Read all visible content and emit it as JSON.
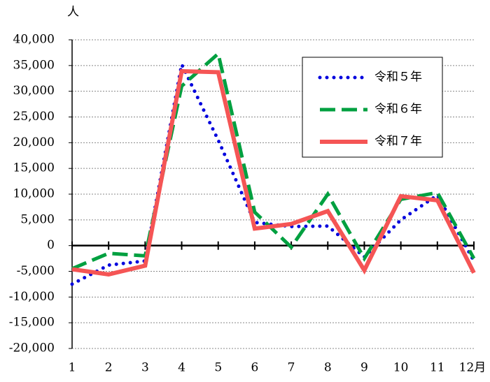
{
  "chart_data": {
    "type": "line",
    "y_unit": "人",
    "categories": [
      "1",
      "2",
      "3",
      "4",
      "5",
      "6",
      "7",
      "8",
      "9",
      "10",
      "11",
      "12月"
    ],
    "series": [
      {
        "name": "令和５年",
        "color": "#0000dd",
        "style": "dotted",
        "values": [
          -7500,
          -3800,
          -3000,
          35200,
          20500,
          4500,
          3700,
          3800,
          -2200,
          5000,
          9800,
          -3000
        ]
      },
      {
        "name": "令和６年",
        "color": "#00a040",
        "style": "dashed",
        "values": [
          -4500,
          -1500,
          -2000,
          31000,
          37300,
          6500,
          -300,
          10000,
          -2500,
          9000,
          10300,
          -2500
        ]
      },
      {
        "name": "令和７年",
        "color": "#f55555",
        "style": "solid",
        "values": [
          -4600,
          -5600,
          -3900,
          33900,
          33700,
          3300,
          4200,
          6700,
          -4800,
          9600,
          8800,
          -5300
        ]
      }
    ],
    "ylim": [
      -20000,
      40000
    ],
    "yticks": [
      {
        "value": 40000,
        "label": "40,000"
      },
      {
        "value": 35000,
        "label": "35,000"
      },
      {
        "value": 30000,
        "label": "30,000"
      },
      {
        "value": 25000,
        "label": "25,000"
      },
      {
        "value": 20000,
        "label": "20,000"
      },
      {
        "value": 15000,
        "label": "15,000"
      },
      {
        "value": 10000,
        "label": "10,000"
      },
      {
        "value": 5000,
        "label": "5,000"
      },
      0,
      {
        "value": -5000,
        "label": "-5,000"
      },
      {
        "value": -10000,
        "label": "-10,000"
      },
      {
        "value": -15000,
        "label": "-15,000"
      },
      {
        "value": -20000,
        "label": "-20,000"
      }
    ],
    "negative_tick_color": "#e00000",
    "grid": true,
    "legend": "upper right"
  }
}
